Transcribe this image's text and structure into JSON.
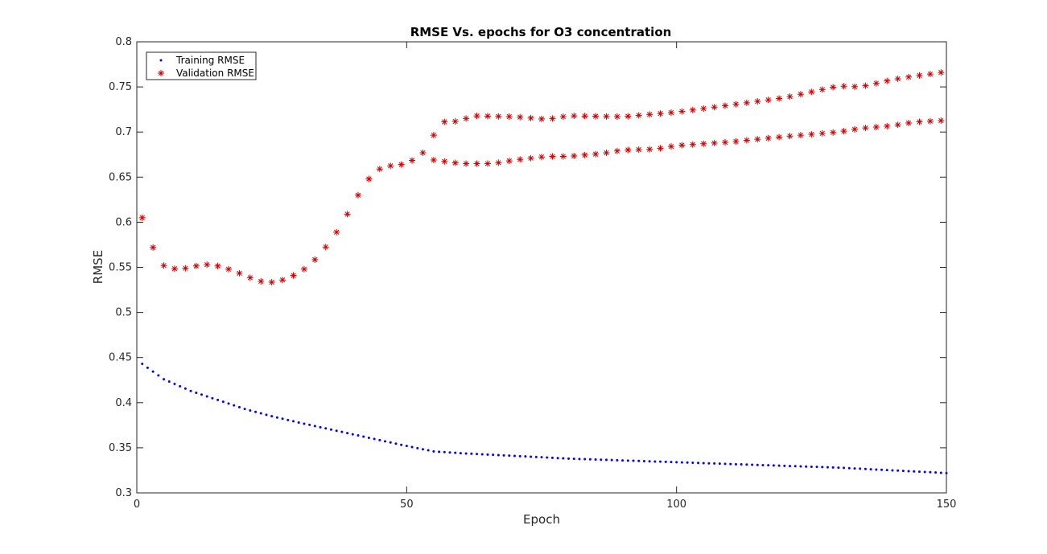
{
  "chart_data": {
    "type": "scatter",
    "title": "RMSE Vs. epochs for O3 concentration",
    "xlabel": "Epoch",
    "ylabel": "RMSE",
    "xlim": [
      0,
      150
    ],
    "ylim": [
      0.3,
      0.8
    ],
    "xticks": [
      0,
      50,
      100,
      150
    ],
    "yticks": [
      0.3,
      0.35,
      0.4,
      0.45,
      0.5,
      0.55,
      0.6,
      0.65,
      0.7,
      0.75,
      0.8
    ],
    "grid": false,
    "legend_position": "top-left",
    "series": [
      {
        "name": "Training RMSE",
        "marker": "dot",
        "color": "#0000ff",
        "anchors": [
          [
            1,
            0.443
          ],
          [
            5,
            0.426
          ],
          [
            10,
            0.413
          ],
          [
            20,
            0.393
          ],
          [
            25,
            0.385
          ],
          [
            30,
            0.378
          ],
          [
            40,
            0.365
          ],
          [
            50,
            0.352
          ],
          [
            55,
            0.346
          ],
          [
            60,
            0.344
          ],
          [
            70,
            0.341
          ],
          [
            80,
            0.338
          ],
          [
            90,
            0.336
          ],
          [
            100,
            0.334
          ],
          [
            110,
            0.332
          ],
          [
            120,
            0.33
          ],
          [
            130,
            0.328
          ],
          [
            140,
            0.325
          ],
          [
            150,
            0.322
          ]
        ]
      },
      {
        "name": "Validation RMSE",
        "marker": "asterisk",
        "color": "#cc0000",
        "anchors": [
          [
            1,
            0.605
          ],
          [
            2,
            0.589
          ],
          [
            3,
            0.572
          ],
          [
            4,
            0.56
          ],
          [
            5,
            0.552
          ],
          [
            6,
            0.549
          ],
          [
            8,
            0.548
          ],
          [
            10,
            0.55
          ],
          [
            12,
            0.553
          ],
          [
            14,
            0.553
          ],
          [
            16,
            0.55
          ],
          [
            18,
            0.546
          ],
          [
            20,
            0.541
          ],
          [
            22,
            0.536
          ],
          [
            24,
            0.533
          ],
          [
            26,
            0.534
          ],
          [
            28,
            0.538
          ],
          [
            30,
            0.544
          ],
          [
            32,
            0.552
          ],
          [
            34,
            0.565
          ],
          [
            36,
            0.58
          ],
          [
            38,
            0.598
          ],
          [
            40,
            0.62
          ],
          [
            42,
            0.64
          ],
          [
            44,
            0.656
          ],
          [
            46,
            0.662
          ],
          [
            48,
            0.663
          ],
          [
            50,
            0.665
          ],
          [
            52,
            0.672
          ],
          [
            54,
            0.682
          ],
          [
            56,
            0.711
          ],
          [
            60,
            0.712
          ],
          [
            62,
            0.718
          ],
          [
            70,
            0.717
          ],
          [
            76,
            0.714
          ],
          [
            80,
            0.718
          ],
          [
            90,
            0.717
          ],
          [
            100,
            0.722
          ],
          [
            110,
            0.73
          ],
          [
            120,
            0.738
          ],
          [
            130,
            0.751
          ],
          [
            134,
            0.75
          ],
          [
            140,
            0.758
          ],
          [
            144,
            0.762
          ],
          [
            148,
            0.765
          ],
          [
            150,
            0.767
          ]
        ]
      },
      {
        "name": "",
        "marker": "asterisk",
        "color": "#cc0000",
        "anchors": [
          [
            55,
            0.669
          ],
          [
            60,
            0.665
          ],
          [
            66,
            0.665
          ],
          [
            70,
            0.669
          ],
          [
            76,
            0.673
          ],
          [
            80,
            0.673
          ],
          [
            86,
            0.676
          ],
          [
            90,
            0.68
          ],
          [
            96,
            0.681
          ],
          [
            100,
            0.685
          ],
          [
            110,
            0.689
          ],
          [
            120,
            0.695
          ],
          [
            130,
            0.7
          ],
          [
            134,
            0.704
          ],
          [
            140,
            0.707
          ],
          [
            144,
            0.711
          ],
          [
            150,
            0.713
          ]
        ]
      }
    ]
  }
}
